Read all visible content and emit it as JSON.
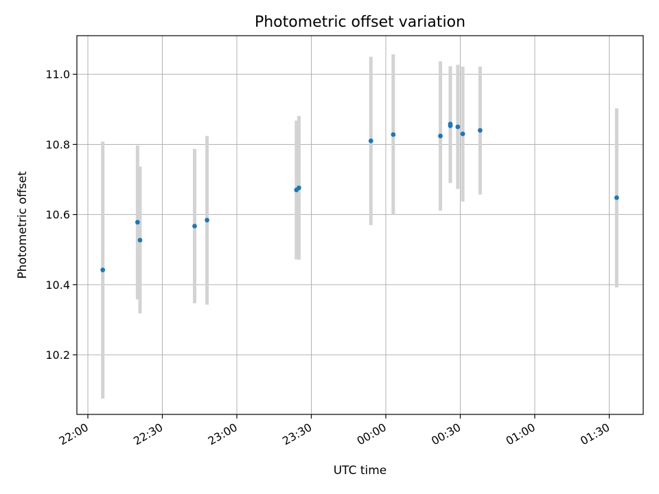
{
  "chart_data": {
    "type": "scatter",
    "title": "Photometric offset variation",
    "xlabel": "UTC time",
    "ylabel": "Photometric offset",
    "x_tick_labels": [
      "22:00",
      "22:30",
      "23:00",
      "23:30",
      "00:00",
      "00:30",
      "01:00",
      "01:30"
    ],
    "y_ticks": [
      10.2,
      10.4,
      10.6,
      10.8,
      11.0
    ],
    "y_tick_labels": [
      "10.2",
      "10.4",
      "10.6",
      "10.8",
      "11.0"
    ],
    "ylim": [
      10.03,
      11.11
    ],
    "grid": true,
    "points": [
      {
        "time": "22:06",
        "y": 10.442,
        "err_low": 10.075,
        "err_high": 10.808
      },
      {
        "time": "22:20",
        "y": 10.578,
        "err_low": 10.358,
        "err_high": 10.797
      },
      {
        "time": "22:21",
        "y": 10.527,
        "err_low": 10.318,
        "err_high": 10.737
      },
      {
        "time": "22:43",
        "y": 10.567,
        "err_low": 10.347,
        "err_high": 10.787
      },
      {
        "time": "22:48",
        "y": 10.584,
        "err_low": 10.343,
        "err_high": 10.824
      },
      {
        "time": "23:24",
        "y": 10.67,
        "err_low": 10.472,
        "err_high": 10.868
      },
      {
        "time": "23:25",
        "y": 10.676,
        "err_low": 10.471,
        "err_high": 10.881
      },
      {
        "time": "23:54",
        "y": 10.81,
        "err_low": 10.57,
        "err_high": 11.05
      },
      {
        "time": "00:03",
        "y": 10.828,
        "err_low": 10.6,
        "err_high": 11.057
      },
      {
        "time": "00:22",
        "y": 10.824,
        "err_low": 10.611,
        "err_high": 11.037
      },
      {
        "time": "00:26",
        "y": 10.858,
        "err_low": 10.69,
        "err_high": 11.023
      },
      {
        "time": "00:26",
        "y": 10.853,
        "err_low": 10.69,
        "err_high": 11.023
      },
      {
        "time": "00:29",
        "y": 10.85,
        "err_low": 10.673,
        "err_high": 11.027
      },
      {
        "time": "00:31",
        "y": 10.83,
        "err_low": 10.637,
        "err_high": 11.022
      },
      {
        "time": "00:38",
        "y": 10.84,
        "err_low": 10.657,
        "err_high": 11.022
      },
      {
        "time": "01:33",
        "y": 10.648,
        "err_low": 10.392,
        "err_high": 10.903
      }
    ],
    "colors": {
      "point": "#1f77b4",
      "errorbar": "#d3d3d3",
      "grid": "#b0b0b0"
    }
  }
}
